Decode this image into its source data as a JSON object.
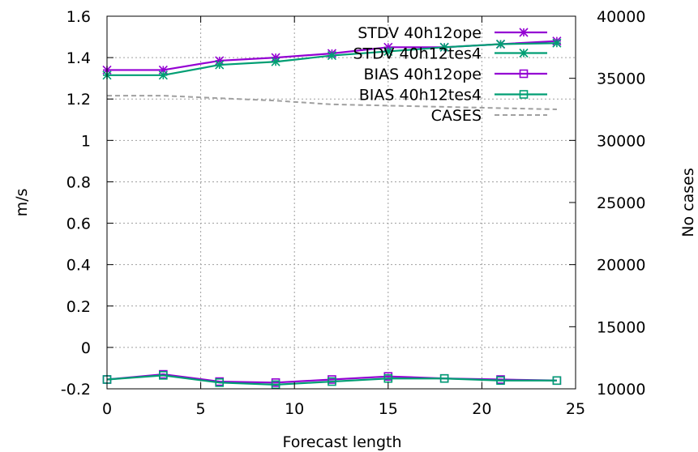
{
  "chart_data": {
    "type": "line",
    "xlabel": "Forecast length",
    "ylabel": "m/s",
    "y2label": "No cases",
    "xlim": [
      0,
      25
    ],
    "ylim": [
      -0.2,
      1.6
    ],
    "y2lim": [
      10000,
      40000
    ],
    "xticks": [
      "0",
      "5",
      "10",
      "15",
      "20",
      "25"
    ],
    "yticks": [
      "-0.2",
      "0",
      "0.2",
      "0.4",
      "0.6",
      "0.8",
      "1",
      "1.2",
      "1.4",
      "1.6"
    ],
    "y2ticks": [
      "10000",
      "15000",
      "20000",
      "25000",
      "30000",
      "35000",
      "40000"
    ],
    "grid": true,
    "legend_position": "top-right",
    "series": [
      {
        "name": "STDV 40h12ope",
        "axis": "y",
        "color": "#9400d3",
        "marker": "star",
        "x": [
          0,
          3,
          6,
          9,
          12,
          15,
          18,
          21,
          24
        ],
        "values": [
          1.34,
          1.34,
          1.385,
          1.4,
          1.42,
          1.45,
          1.45,
          1.465,
          1.48
        ]
      },
      {
        "name": "STDV 40h12tes4",
        "axis": "y",
        "color": "#009e73",
        "marker": "star",
        "x": [
          0,
          3,
          6,
          9,
          12,
          15,
          18,
          21,
          24
        ],
        "values": [
          1.315,
          1.315,
          1.365,
          1.38,
          1.41,
          1.43,
          1.45,
          1.465,
          1.47
        ]
      },
      {
        "name": "BIAS 40h12ope",
        "axis": "y",
        "color": "#9400d3",
        "marker": "square",
        "x": [
          0,
          3,
          6,
          9,
          12,
          15,
          18,
          21,
          24
        ],
        "values": [
          -0.155,
          -0.13,
          -0.165,
          -0.17,
          -0.155,
          -0.14,
          -0.15,
          -0.155,
          -0.16
        ]
      },
      {
        "name": "BIAS 40h12tes4",
        "axis": "y",
        "color": "#009e73",
        "marker": "square",
        "x": [
          0,
          3,
          6,
          9,
          12,
          15,
          18,
          21,
          24
        ],
        "values": [
          -0.155,
          -0.135,
          -0.17,
          -0.18,
          -0.165,
          -0.15,
          -0.15,
          -0.16,
          -0.16
        ]
      },
      {
        "name": "CASES",
        "axis": "y2",
        "color": "#a0a0a0",
        "marker": "none",
        "dash": true,
        "x": [
          0,
          3,
          6,
          9,
          12,
          15,
          18,
          21,
          24
        ],
        "values": [
          33600,
          33600,
          33400,
          33200,
          32900,
          32800,
          32700,
          32600,
          32500
        ]
      }
    ]
  }
}
